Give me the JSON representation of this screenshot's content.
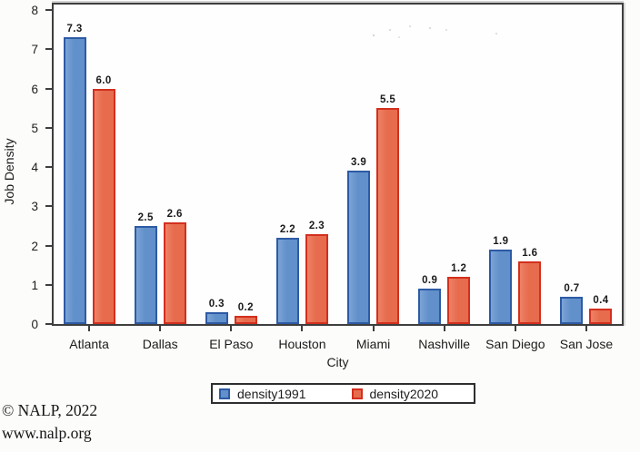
{
  "chart_data": {
    "type": "bar",
    "title": "",
    "categories": [
      "Atlanta",
      "Dallas",
      "El Paso",
      "Houston",
      "Miami",
      "Nashville",
      "San Diego",
      "San Jose"
    ],
    "series": [
      {
        "name": "density1991",
        "fill": "#6190ca",
        "fill_light": "#7ca4d6",
        "border": "#2d5aa5",
        "values": [
          7.3,
          2.5,
          0.3,
          2.2,
          3.9,
          0.9,
          1.9,
          0.7
        ]
      },
      {
        "name": "density2020",
        "fill": "#e76c4e",
        "fill_light": "#ee8165",
        "border": "#d32f1e",
        "values": [
          6.0,
          2.6,
          0.2,
          2.3,
          5.5,
          1.2,
          1.6,
          0.4
        ]
      }
    ],
    "xlabel": "City",
    "ylabel": "Job Density",
    "ylim": [
      0,
      8
    ],
    "yticks": [
      0,
      1,
      2,
      3,
      4,
      5,
      6,
      7,
      8
    ],
    "grid": false,
    "value_labels": true,
    "legend_position": "bottom-center"
  },
  "footer": {
    "copyright": "© NALP, 2022",
    "url": "www.nalp.org"
  }
}
